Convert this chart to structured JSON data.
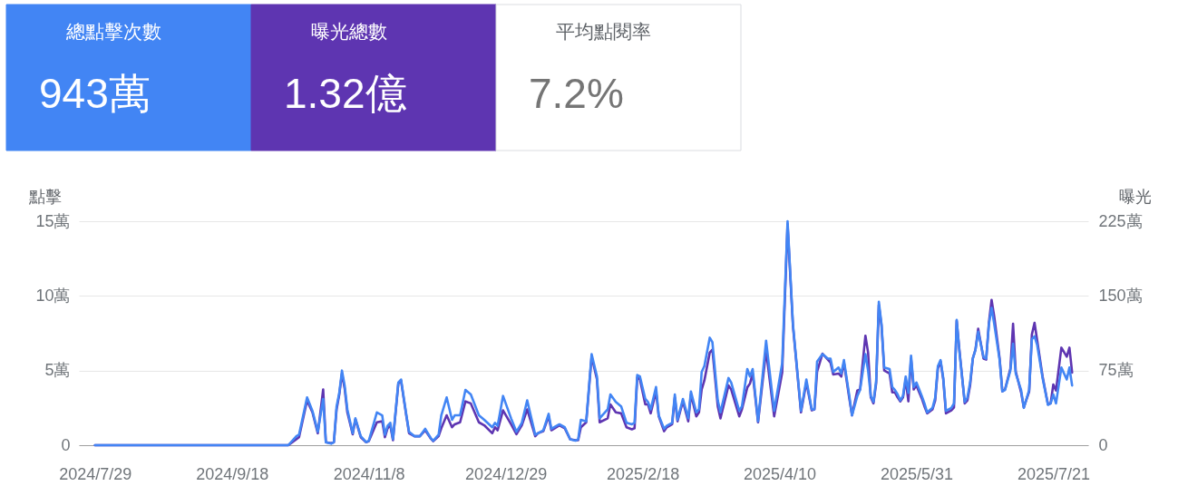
{
  "chart_data": [
    {
      "type": "other",
      "categories": [
        "總點擊次數",
        "曝光總數",
        "平均點閱率"
      ],
      "value_labels": [
        "943萬",
        "1.32億",
        "7.2%"
      ],
      "colors": [
        "#4285f4",
        "#5e35b1",
        "#ffffff"
      ]
    },
    {
      "type": "line",
      "x": [
        "2024-07-29",
        "2024-10-09",
        "2024-10-12",
        "2024-10-13",
        "2024-10-16",
        "2024-10-18",
        "2024-10-20",
        "2024-10-22",
        "2024-10-23",
        "2024-10-25",
        "2024-10-26",
        "2024-10-27",
        "2024-10-28",
        "2024-10-29",
        "2024-10-30",
        "2024-10-31",
        "2024-11-02",
        "2024-11-03",
        "2024-11-05",
        "2024-11-07",
        "2024-11-08",
        "2024-11-11",
        "2024-11-13",
        "2024-11-14",
        "2024-11-15",
        "2024-11-16",
        "2024-11-17",
        "2024-11-19",
        "2024-11-20",
        "2024-11-22",
        "2024-11-23",
        "2024-11-25",
        "2024-11-27",
        "2024-11-29",
        "2024-12-01",
        "2024-12-02",
        "2024-12-04",
        "2024-12-05",
        "2024-12-07",
        "2024-12-09",
        "2024-12-10",
        "2024-12-12",
        "2024-12-14",
        "2024-12-16",
        "2024-12-19",
        "2024-12-21",
        "2024-12-24",
        "2024-12-25",
        "2024-12-26",
        "2024-12-28",
        "2024-12-31",
        "2025-01-02",
        "2025-01-04",
        "2025-01-06",
        "2025-01-09",
        "2025-01-10",
        "2025-01-12",
        "2025-01-14",
        "2025-01-15",
        "2025-01-18",
        "2025-01-20",
        "2025-01-22",
        "2025-01-24",
        "2025-01-25",
        "2025-01-26",
        "2025-01-28",
        "2025-01-30",
        "2025-02-01",
        "2025-02-02",
        "2025-02-05",
        "2025-02-06",
        "2025-02-08",
        "2025-02-10",
        "2025-02-12",
        "2025-02-14",
        "2025-02-15",
        "2025-02-16",
        "2025-02-17",
        "2025-02-19",
        "2025-02-20",
        "2025-02-21",
        "2025-02-23",
        "2025-02-24",
        "2025-02-26",
        "2025-02-27",
        "2025-03-01",
        "2025-03-02",
        "2025-03-03",
        "2025-03-05",
        "2025-03-07",
        "2025-03-08",
        "2025-03-10",
        "2025-03-11",
        "2025-03-12",
        "2025-03-13",
        "2025-03-15",
        "2025-03-16",
        "2025-03-18",
        "2025-03-19",
        "2025-03-22",
        "2025-03-23",
        "2025-03-26",
        "2025-03-27",
        "2025-03-29",
        "2025-03-30",
        "2025-03-31",
        "2025-04-02",
        "2025-04-05",
        "2025-04-08",
        "2025-04-11",
        "2025-04-13",
        "2025-04-15",
        "2025-04-18",
        "2025-04-20",
        "2025-04-22",
        "2025-04-23",
        "2025-04-24",
        "2025-04-26",
        "2025-04-28",
        "2025-04-29",
        "2025-04-30",
        "2025-05-02",
        "2025-05-03",
        "2025-05-04",
        "2025-05-06",
        "2025-05-07",
        "2025-05-09",
        "2025-05-10",
        "2025-05-12",
        "2025-05-13",
        "2025-05-14",
        "2025-05-15",
        "2025-05-16",
        "2025-05-17",
        "2025-05-18",
        "2025-05-19",
        "2025-05-21",
        "2025-05-22",
        "2025-05-23",
        "2025-05-24",
        "2025-05-25",
        "2025-05-26",
        "2025-05-27",
        "2025-05-28",
        "2025-05-29",
        "2025-05-30",
        "2025-05-31",
        "2025-06-02",
        "2025-06-03",
        "2025-06-04",
        "2025-06-06",
        "2025-06-07",
        "2025-06-08",
        "2025-06-09",
        "2025-06-10",
        "2025-06-11",
        "2025-06-13",
        "2025-06-14",
        "2025-06-15",
        "2025-06-16",
        "2025-06-18",
        "2025-06-19",
        "2025-06-20",
        "2025-06-21",
        "2025-06-22",
        "2025-06-23",
        "2025-06-25",
        "2025-06-26",
        "2025-06-27",
        "2025-06-28",
        "2025-06-29",
        "2025-07-01",
        "2025-07-02",
        "2025-07-03",
        "2025-07-05",
        "2025-07-06",
        "2025-07-07",
        "2025-07-09",
        "2025-07-10",
        "2025-07-12",
        "2025-07-13",
        "2025-07-14",
        "2025-07-15",
        "2025-07-17",
        "2025-07-19",
        "2025-07-20",
        "2025-07-21",
        "2025-07-22",
        "2025-07-24",
        "2025-07-26",
        "2025-07-27",
        "2025-07-28"
      ],
      "series": [
        {
          "color": "#5e35b1",
          "axis": "y2",
          "values": [
            0,
            0,
            6,
            8,
            45,
            33,
            12,
            56,
            3,
            2,
            3,
            36,
            51,
            72,
            57,
            33,
            11,
            26,
            8,
            3,
            4,
            23,
            24,
            8,
            17,
            20,
            5,
            62,
            65,
            29,
            12,
            9,
            9,
            15,
            7,
            4,
            9,
            17,
            30,
            18,
            21,
            23,
            44,
            42,
            23,
            20,
            12,
            18,
            15,
            35,
            21,
            11,
            20,
            36,
            9,
            12,
            14,
            29,
            15,
            20,
            17,
            6,
            5,
            5,
            18,
            23,
            89,
            66,
            23,
            27,
            41,
            33,
            32,
            18,
            16,
            17,
            68,
            66,
            41,
            41,
            32,
            54,
            29,
            14,
            18,
            21,
            48,
            24,
            44,
            24,
            51,
            29,
            33,
            56,
            65,
            93,
            96,
            39,
            27,
            60,
            56,
            29,
            36,
            58,
            62,
            72,
            23,
            95,
            29,
            73,
            222,
            120,
            33,
            63,
            35,
            36,
            74,
            92,
            86,
            83,
            71,
            72,
            69,
            83,
            47,
            30,
            55,
            56,
            110,
            93,
            48,
            42,
            62,
            141,
            120,
            75,
            72,
            53,
            53,
            48,
            44,
            48,
            66,
            44,
            87,
            56,
            60,
            47,
            39,
            32,
            36,
            45,
            77,
            84,
            66,
            32,
            35,
            38,
            125,
            96,
            42,
            45,
            60,
            87,
            96,
            117,
            87,
            86,
            123,
            146,
            129,
            87,
            54,
            56,
            77,
            122,
            74,
            53,
            38,
            54,
            111,
            123,
            105,
            69,
            41,
            42,
            61,
            55,
            98,
            89,
            98,
            73
          ]
        },
        {
          "color": "#4285f4",
          "values": [
            0,
            0,
            0.6,
            0.7,
            3.2,
            2.3,
            0.9,
            3.1,
            0.2,
            0.1,
            0.2,
            2.6,
            3.5,
            5.0,
            4.0,
            2.4,
            0.8,
            1.8,
            0.6,
            0.2,
            0.3,
            2.2,
            2.0,
            0.7,
            1.3,
            1.5,
            0.4,
            4.2,
            4.4,
            2.0,
            0.9,
            0.6,
            0.6,
            1.1,
            0.5,
            0.3,
            0.7,
            2.0,
            3.2,
            1.7,
            2.0,
            2.0,
            3.7,
            3.4,
            2.0,
            1.7,
            1.2,
            1.5,
            1.3,
            3.3,
            1.8,
            0.9,
            1.5,
            3.0,
            0.7,
            0.8,
            1.0,
            2.1,
            1.1,
            1.4,
            1.2,
            0.4,
            0.3,
            0.4,
            1.7,
            1.6,
            6.1,
            4.6,
            1.8,
            2.4,
            3.4,
            2.9,
            2.6,
            1.5,
            1.4,
            1.5,
            4.7,
            4.6,
            3.1,
            2.9,
            2.4,
            3.9,
            2.0,
            1.1,
            1.3,
            1.5,
            3.4,
            1.7,
            3.1,
            1.8,
            3.6,
            2.2,
            2.4,
            4.9,
            5.3,
            7.2,
            6.9,
            3.0,
            2.2,
            4.5,
            4.2,
            2.3,
            2.6,
            5.1,
            4.6,
            5.1,
            1.6,
            7.0,
            2.3,
            5.5,
            15.0,
            8.1,
            2.3,
            4.4,
            2.4,
            2.4,
            5.6,
            6.1,
            5.8,
            5.8,
            4.9,
            5.2,
            4.8,
            5.7,
            3.3,
            2.0,
            3.3,
            3.7,
            6.1,
            5.0,
            3.3,
            2.9,
            4.3,
            9.6,
            8.1,
            5.2,
            5.1,
            3.9,
            3.7,
            3.4,
            3.0,
            3.3,
            4.6,
            3.5,
            6.0,
            3.9,
            4.2,
            3.3,
            2.8,
            2.2,
            2.5,
            3.2,
            5.3,
            5.7,
            4.5,
            2.3,
            2.5,
            2.8,
            8.4,
            6.3,
            2.9,
            3.2,
            4.2,
            5.8,
            6.4,
            7.6,
            5.9,
            5.8,
            8.1,
            9.2,
            8.1,
            5.7,
            3.6,
            3.7,
            5.0,
            6.8,
            4.8,
            3.7,
            2.5,
            3.7,
            7.1,
            7.3,
            6.7,
            4.5,
            2.7,
            2.8,
            3.4,
            2.8,
            5.2,
            4.4,
            5.2,
            4.0
          ]
        }
      ],
      "xlim": [
        "2024-07-23",
        "2025-08-03"
      ],
      "xticks": [
        {
          "value": "2024-07-29",
          "label": "2024/7/29"
        },
        {
          "value": "2024-09-18",
          "label": "2024/9/18"
        },
        {
          "value": "2024-11-08",
          "label": "2024/11/8"
        },
        {
          "value": "2024-12-29",
          "label": "2024/12/29"
        },
        {
          "value": "2025-02-18",
          "label": "2025/2/18"
        },
        {
          "value": "2025-04-10",
          "label": "2025/4/10"
        },
        {
          "value": "2025-05-31",
          "label": "2025/5/31"
        },
        {
          "value": "2025-07-21",
          "label": "2025/7/21"
        }
      ],
      "ylim": [
        0,
        15
      ],
      "yticks": [
        0,
        {
          "value": 5,
          "label": "5萬"
        },
        {
          "value": 10,
          "label": "10萬"
        },
        {
          "value": 15,
          "label": "15萬"
        }
      ],
      "y2lim": [
        0,
        225
      ],
      "y2ticks": [
        0,
        {
          "value": 75,
          "label": "75萬"
        },
        {
          "value": 150,
          "label": "150萬"
        },
        {
          "value": 225,
          "label": "225萬"
        }
      ],
      "ylabel": "點擊",
      "y2label": "曝光",
      "grid": "y"
    }
  ]
}
